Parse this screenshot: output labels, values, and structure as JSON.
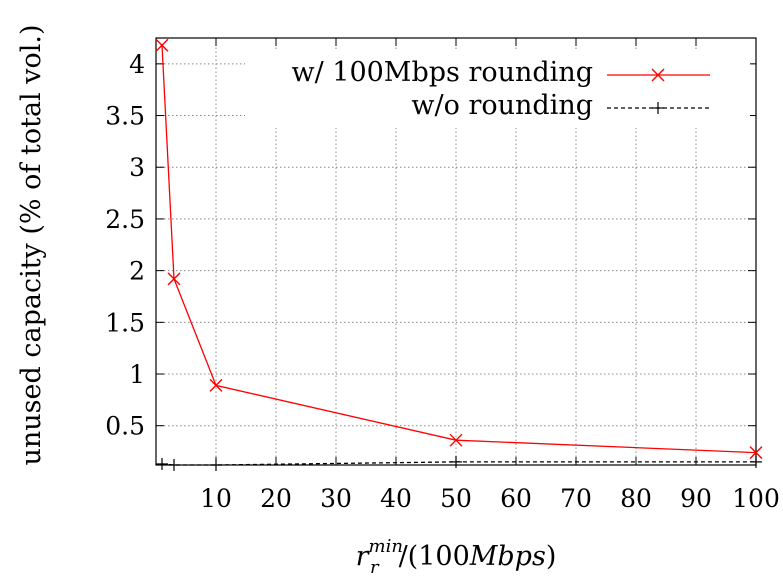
{
  "chart_data": {
    "type": "line",
    "title": "",
    "xlabel": {
      "base": "r",
      "superscript": "min",
      "subscript": "r",
      "suffix": "/(100",
      "unit": "Mbps",
      "close": ")"
    },
    "ylabel": "unused capacity (% of total vol.)",
    "xlim": [
      0,
      100
    ],
    "ylim": [
      0.12,
      4.25
    ],
    "x_ticks": [
      "10",
      "20",
      "30",
      "40",
      "50",
      "60",
      "70",
      "80",
      "90",
      "100"
    ],
    "y_ticks": [
      "0.5",
      "1",
      "1.5",
      "2",
      "2.5",
      "3",
      "3.5",
      "4"
    ],
    "grid": true,
    "legend_position": "top-right",
    "series": [
      {
        "name": "w/ 100Mbps rounding",
        "color": "#ff0000",
        "line_style": "solid",
        "marker": "x",
        "x": [
          1,
          3,
          10,
          50,
          100
        ],
        "y": [
          4.18,
          1.92,
          0.89,
          0.36,
          0.24
        ]
      },
      {
        "name": "w/o rounding",
        "color": "#000000",
        "line_style": "dashed",
        "marker": "+",
        "x": [
          1,
          3,
          10,
          50,
          100
        ],
        "y": [
          0.13,
          0.12,
          0.12,
          0.15,
          0.15
        ]
      }
    ]
  }
}
